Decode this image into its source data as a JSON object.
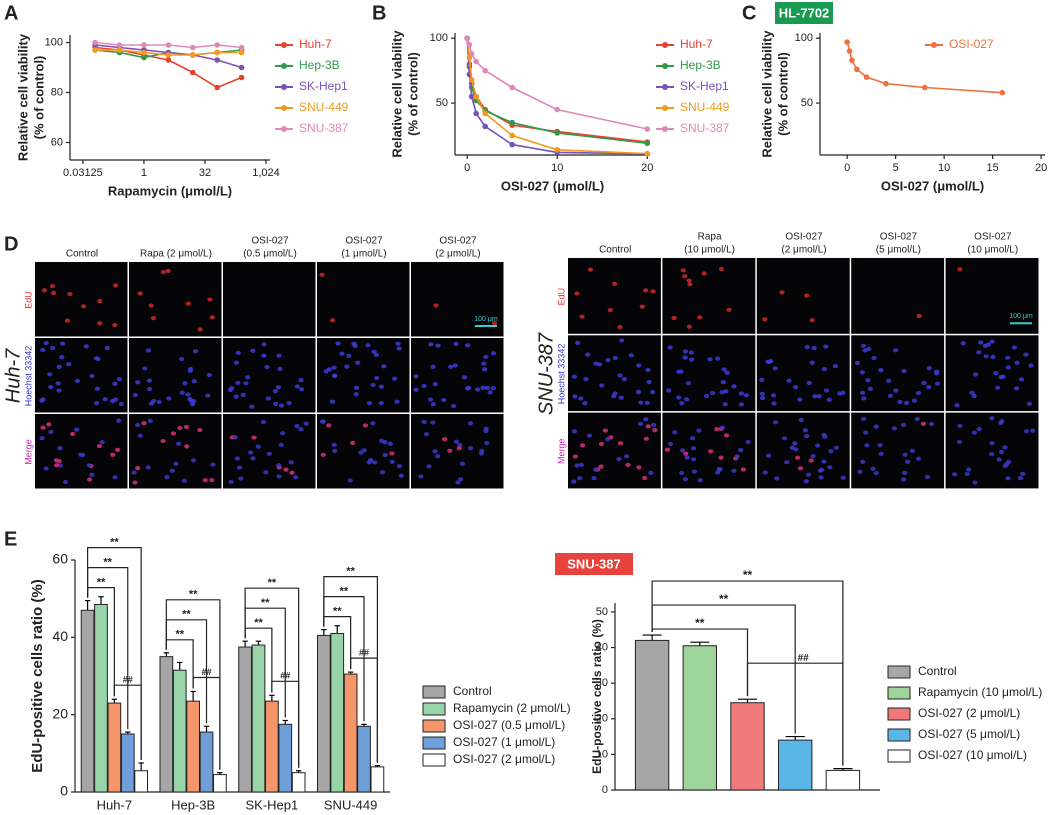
{
  "panel_labels": [
    "A",
    "B",
    "C",
    "D",
    "E"
  ],
  "chart_data": [
    {
      "type": "line",
      "xlabel": "Rapamycin (μmol/L)",
      "ylabel": [
        "Relative cell viability",
        "(% of control)"
      ],
      "xscale": "log",
      "x": [
        0.0625,
        0.25,
        1,
        4,
        16,
        64,
        256
      ],
      "xlim": [
        0.015,
        1285
      ],
      "xticks": [
        0.03125,
        1,
        32,
        {
          "value": 1024,
          "label": "1,024"
        }
      ],
      "ylim": [
        53,
        103
      ],
      "yticks": [
        60,
        80,
        100
      ],
      "legend": "right",
      "series": [
        {
          "name": "Huh-7",
          "color": "#e8412c",
          "values": [
            98,
            97,
            95,
            93,
            88,
            82,
            86
          ]
        },
        {
          "name": "Hep-3B",
          "color": "#2e9a4a",
          "values": [
            97,
            96,
            94,
            96,
            95,
            96,
            97
          ]
        },
        {
          "name": "SK-Hep1",
          "color": "#7b52b8",
          "values": [
            99,
            98,
            97,
            96,
            95,
            93,
            90
          ]
        },
        {
          "name": "SNU-449",
          "color": "#f39a1e",
          "values": [
            97,
            97,
            96,
            95,
            95,
            96,
            96
          ]
        },
        {
          "name": "SNU-387",
          "color": "#e088b8",
          "values": [
            100,
            99,
            99,
            99,
            98,
            99,
            98
          ]
        }
      ]
    },
    {
      "type": "line",
      "xlabel": "OSI-027 (μmol/L)",
      "ylabel": [
        "Relative cell viability",
        "(% of control)"
      ],
      "x": [
        0,
        0.25,
        0.5,
        1,
        2,
        5,
        10,
        20
      ],
      "xlim": [
        -1.35,
        20.3
      ],
      "xticks": [
        0,
        10,
        20
      ],
      "ylim": [
        10,
        104
      ],
      "yticks": [
        50,
        100
      ],
      "legend": "right",
      "series": [
        {
          "name": "Huh-7",
          "color": "#e8412c",
          "values": [
            100,
            80,
            65,
            55,
            45,
            33,
            28,
            20
          ]
        },
        {
          "name": "Hep-3B",
          "color": "#2e9a4a",
          "values": [
            100,
            78,
            62,
            52,
            44,
            35,
            27,
            19
          ]
        },
        {
          "name": "SK-Hep1",
          "color": "#7b52b8",
          "values": [
            100,
            72,
            55,
            42,
            32,
            18,
            12,
            11
          ]
        },
        {
          "name": "SNU-449",
          "color": "#f39a1e",
          "values": [
            100,
            85,
            68,
            55,
            42,
            25,
            14,
            11
          ]
        },
        {
          "name": "SNU-387",
          "color": "#e088b8",
          "values": [
            100,
            95,
            88,
            82,
            75,
            62,
            45,
            30
          ]
        }
      ]
    },
    {
      "type": "line",
      "badge": "HL-7702",
      "xlabel": "OSI-027 (μmol/L)",
      "ylabel": [
        "Relative cell viability",
        "(% of control)"
      ],
      "x": [
        0,
        0.25,
        0.5,
        1,
        2,
        4,
        8,
        16
      ],
      "xlim": [
        -2.8,
        20.4
      ],
      "xticks": [
        0,
        5,
        10,
        15,
        20
      ],
      "ylim": [
        10,
        104
      ],
      "yticks": [
        50,
        100
      ],
      "legend": "inside",
      "series": [
        {
          "name": "OSI-027",
          "color": "#f07040",
          "values": [
            97,
            90,
            83,
            76,
            70,
            65,
            62,
            58
          ]
        }
      ]
    },
    {
      "type": "bar",
      "ylabel": "EdU-positive cells ratio (%)",
      "categories": [
        "Huh-7",
        "Hep-3B",
        "SK-Hep1",
        "SNU-449"
      ],
      "ylim": [
        0,
        60
      ],
      "yticks": [
        0,
        20,
        40,
        60
      ],
      "significance": [
        [
          "**",
          "**",
          "**",
          "##"
        ],
        [
          "**",
          "**",
          "**",
          "##"
        ],
        [
          "**",
          "**",
          "**",
          "##"
        ],
        [
          "**",
          "**",
          "**",
          "##"
        ]
      ],
      "series": [
        {
          "name": "Control",
          "color": "#a6a6a6",
          "values": [
            47,
            35,
            37.5,
            40.5
          ],
          "errors": [
            2.5,
            1,
            1.5,
            1.5
          ]
        },
        {
          "name": "Rapamycin (2 μmol/L)",
          "color": "#98d4a8",
          "values": [
            48.5,
            31.5,
            38,
            41
          ],
          "errors": [
            2,
            2,
            1,
            2
          ]
        },
        {
          "name": "OSI-027 (0.5 μmol/L)",
          "color": "#f4956a",
          "values": [
            23,
            23.5,
            23.5,
            30.5
          ],
          "errors": [
            1,
            2.5,
            1.5,
            0.5
          ]
        },
        {
          "name": "OSI-027 (1 μmol/L)",
          "color": "#6f9fd8",
          "values": [
            15,
            15.5,
            17.5,
            17
          ],
          "errors": [
            0.5,
            1.5,
            1,
            0.5
          ]
        },
        {
          "name": "OSI-027 (2 μmol/L)",
          "color": "#ffffff",
          "values": [
            5.5,
            4.5,
            5,
            6.5
          ],
          "errors": [
            2,
            0.5,
            0.5,
            0.3
          ]
        }
      ]
    },
    {
      "type": "bar",
      "badge": "SNU-387",
      "ylabel": "EdU-positive cells ratio (%)",
      "categories": [
        null
      ],
      "ylim": [
        0,
        52.5
      ],
      "yticks": [
        0,
        10,
        20,
        30,
        40,
        50
      ],
      "significance": [
        [
          "**",
          "**",
          "**",
          "##"
        ]
      ],
      "series": [
        {
          "name": "Control",
          "color": "#a6a6a6",
          "values": [
            42
          ],
          "errors": [
            1.5
          ]
        },
        {
          "name": "Rapamycin (10 μmol/L)",
          "color": "#9ed39a",
          "values": [
            40.5
          ],
          "errors": [
            1
          ]
        },
        {
          "name": "OSI-027 (2 μmol/L)",
          "color": "#f07a7a",
          "values": [
            24.5
          ],
          "errors": [
            1
          ]
        },
        {
          "name": "OSI-027 (5 μmol/L)",
          "color": "#5bb6e8",
          "values": [
            14
          ],
          "errors": [
            1
          ]
        },
        {
          "name": "OSI-027 (10 μmol/L)",
          "color": "#ffffff",
          "values": [
            5.5
          ],
          "errors": [
            0.5
          ]
        }
      ]
    }
  ],
  "images": [
    {
      "cell_line": "Huh-7",
      "rows": [
        "EdU",
        "Hoechst 33342",
        "Merge"
      ],
      "scale_bar": "100 μm",
      "columns": [
        [
          "Control"
        ],
        [
          "Rapa (2 μmol/L)"
        ],
        [
          "OSI-027",
          "(0.5 μmol/L)"
        ],
        [
          "OSI-027",
          "(1 μmol/L)"
        ],
        [
          "OSI-027",
          "(2 μmol/L)"
        ]
      ]
    },
    {
      "cell_line": "SNU-387",
      "rows": [
        "EdU",
        "Hoechst 33342",
        "Merge"
      ],
      "scale_bar": "100 μm",
      "columns": [
        [
          "Control"
        ],
        [
          "Rapa",
          "(10 μmol/L)"
        ],
        [
          "OSI-027",
          "(2 μmol/L)"
        ],
        [
          "OSI-027",
          "(5 μmol/L)"
        ],
        [
          "OSI-027",
          "(10 μmol/L)"
        ]
      ]
    }
  ]
}
